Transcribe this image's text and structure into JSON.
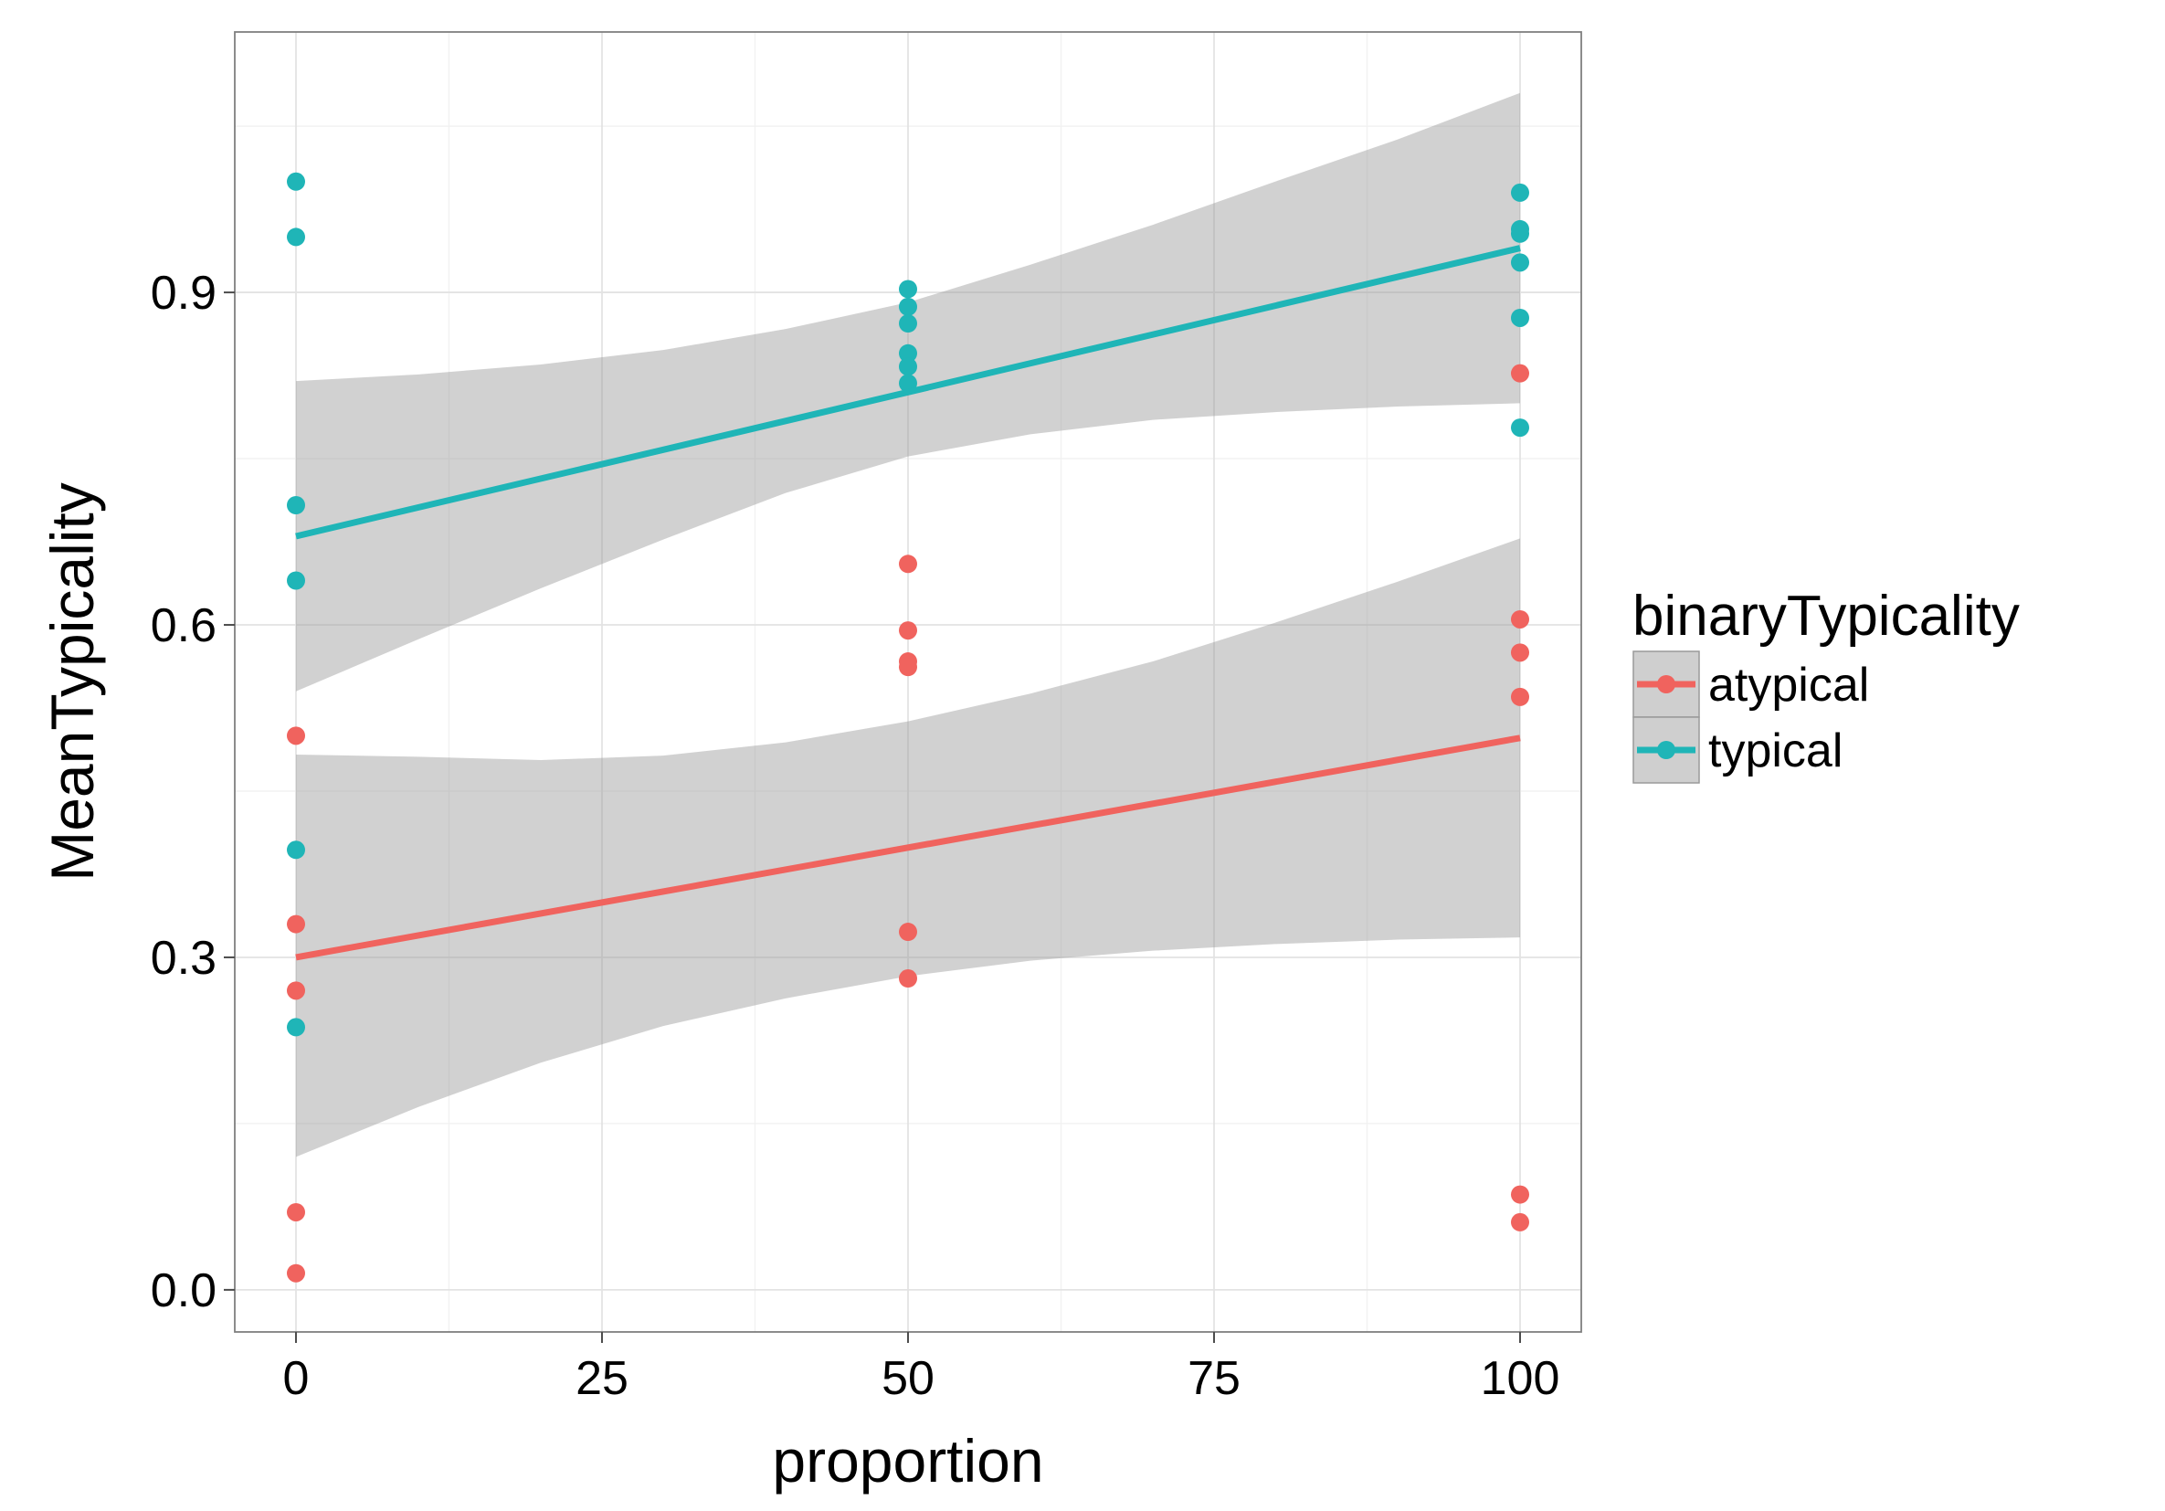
{
  "chart_data": {
    "type": "scatter",
    "xlabel": "proportion",
    "ylabel": "MeanTypicality",
    "xlim": [
      -5,
      105
    ],
    "ylim": [
      -0.038,
      1.135
    ],
    "x_ticks": [
      0,
      25,
      50,
      75,
      100
    ],
    "x_tick_labels": [
      "0",
      "25",
      "50",
      "75",
      "100"
    ],
    "y_ticks": [
      0.0,
      0.3,
      0.6,
      0.9
    ],
    "y_tick_labels": [
      "0.0",
      "0.3",
      "0.6",
      "0.9"
    ],
    "grid": true,
    "legend": {
      "title": "binaryTypicality",
      "position": "right"
    },
    "series": [
      {
        "name": "atypical",
        "color": "#F0635E",
        "points": [
          {
            "x": 0,
            "y": 0.5
          },
          {
            "x": 0,
            "y": 0.33
          },
          {
            "x": 0,
            "y": 0.27
          },
          {
            "x": 0,
            "y": 0.07
          },
          {
            "x": 0,
            "y": 0.015
          },
          {
            "x": 50,
            "y": 0.655
          },
          {
            "x": 50,
            "y": 0.595
          },
          {
            "x": 50,
            "y": 0.567
          },
          {
            "x": 50,
            "y": 0.562
          },
          {
            "x": 50,
            "y": 0.323
          },
          {
            "x": 50,
            "y": 0.281
          },
          {
            "x": 100,
            "y": 0.827
          },
          {
            "x": 100,
            "y": 0.605
          },
          {
            "x": 100,
            "y": 0.575
          },
          {
            "x": 100,
            "y": 0.535
          },
          {
            "x": 100,
            "y": 0.086
          },
          {
            "x": 100,
            "y": 0.061
          }
        ],
        "fit": {
          "x": [
            0,
            100
          ],
          "y": [
            0.3,
            0.498
          ]
        },
        "ci": {
          "x": [
            0,
            10,
            20,
            30,
            40,
            50,
            60,
            70,
            80,
            90,
            100
          ],
          "lower": [
            0.12,
            0.165,
            0.205,
            0.238,
            0.263,
            0.283,
            0.297,
            0.306,
            0.312,
            0.316,
            0.318
          ],
          "upper": [
            0.483,
            0.481,
            0.478,
            0.482,
            0.494,
            0.513,
            0.538,
            0.567,
            0.602,
            0.639,
            0.678
          ]
        }
      },
      {
        "name": "typical",
        "color": "#1FB5B7",
        "points": [
          {
            "x": 0,
            "y": 1.0
          },
          {
            "x": 0,
            "y": 0.95
          },
          {
            "x": 0,
            "y": 0.708
          },
          {
            "x": 0,
            "y": 0.64
          },
          {
            "x": 0,
            "y": 0.397
          },
          {
            "x": 0,
            "y": 0.237
          },
          {
            "x": 50,
            "y": 0.903
          },
          {
            "x": 50,
            "y": 0.887
          },
          {
            "x": 50,
            "y": 0.872
          },
          {
            "x": 50,
            "y": 0.845
          },
          {
            "x": 50,
            "y": 0.833
          },
          {
            "x": 50,
            "y": 0.818
          },
          {
            "x": 100,
            "y": 0.99
          },
          {
            "x": 100,
            "y": 0.957
          },
          {
            "x": 100,
            "y": 0.953
          },
          {
            "x": 100,
            "y": 0.927
          },
          {
            "x": 100,
            "y": 0.877
          },
          {
            "x": 100,
            "y": 0.778
          }
        ],
        "fit": {
          "x": [
            0,
            100
          ],
          "y": [
            0.68,
            0.94
          ]
        },
        "ci": {
          "x": [
            0,
            10,
            20,
            30,
            40,
            50,
            60,
            70,
            80,
            90,
            100
          ],
          "lower": [
            0.54,
            0.587,
            0.633,
            0.677,
            0.719,
            0.752,
            0.772,
            0.785,
            0.792,
            0.797,
            0.8
          ],
          "upper": [
            0.82,
            0.826,
            0.835,
            0.848,
            0.867,
            0.891,
            0.925,
            0.961,
            1.0,
            1.038,
            1.08
          ]
        }
      }
    ]
  }
}
